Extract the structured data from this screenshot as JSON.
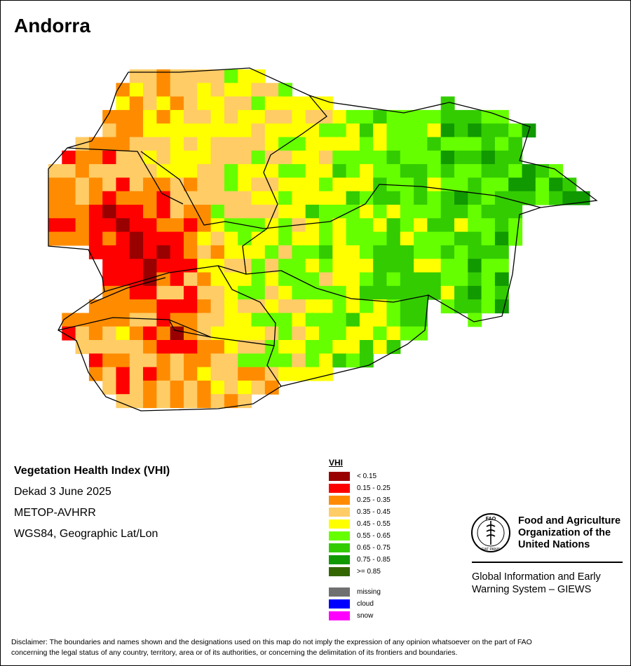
{
  "title": "Andorra",
  "product": {
    "name": "Vegetation Health Index (VHI)",
    "period": "Dekad 3 June 2025",
    "sensor": "METOP-AVHRR",
    "projection": "WGS84, Geographic Lat/Lon"
  },
  "legend": {
    "title": "VHI",
    "classes": [
      {
        "label": "< 0.15",
        "color": "#990000"
      },
      {
        "label": "0.15 - 0.25",
        "color": "#ff0000"
      },
      {
        "label": "0.25 - 0.35",
        "color": "#ff8c00"
      },
      {
        "label": "0.35 - 0.45",
        "color": "#ffcc66"
      },
      {
        "label": "0.45 - 0.55",
        "color": "#ffff00"
      },
      {
        "label": "0.55 - 0.65",
        "color": "#66ff00"
      },
      {
        "label": "0.65 - 0.75",
        "color": "#33cc00"
      },
      {
        "label": "0.75 - 0.85",
        "color": "#119900"
      },
      {
        "label": ">= 0.85",
        "color": "#336600"
      }
    ],
    "extra": [
      {
        "label": "missing",
        "color": "#707070"
      },
      {
        "label": "cloud",
        "color": "#0000ff"
      },
      {
        "label": "snow",
        "color": "#ff00ff"
      }
    ]
  },
  "logo": {
    "letters": "FAO",
    "ring_text": "FIAT PANIS",
    "org_line1": "Food and Agriculture",
    "org_line2": "Organization of the",
    "org_line3": "United Nations",
    "giews_line1": "Global Information and Early",
    "giews_line2": "Warning System – GIEWS"
  },
  "disclaimer_line1": "Disclaimer: The boundaries and names shown and the designations used on this map do not imply the expression of any opinion whatsoever on the part of FAO",
  "disclaimer_line2": "concerning the legal status of any country, territory, area or of its authorities, or concerning the delimitation of its frontiers and boundaries."
}
